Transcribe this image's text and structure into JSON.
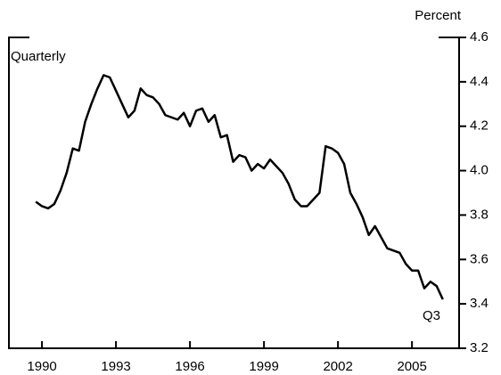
{
  "chart_data": {
    "type": "line",
    "y_axis_label": "Percent",
    "annotations": [
      "Quarterly",
      "Q3"
    ],
    "x": [
      1989.75,
      1990,
      1990.25,
      1990.5,
      1990.75,
      1991,
      1991.25,
      1991.5,
      1991.75,
      1992,
      1992.25,
      1992.5,
      1992.75,
      1993,
      1993.25,
      1993.5,
      1993.75,
      1994,
      1994.25,
      1994.5,
      1994.75,
      1995,
      1995.25,
      1995.5,
      1995.75,
      1996,
      1996.25,
      1996.5,
      1996.75,
      1997,
      1997.25,
      1997.5,
      1997.75,
      1998,
      1998.25,
      1998.5,
      1998.75,
      1999,
      1999.25,
      1999.5,
      1999.75,
      2000,
      2000.25,
      2000.5,
      2000.75,
      2001,
      2001.25,
      2001.5,
      2001.75,
      2002,
      2002.25,
      2002.5,
      2002.75,
      2003,
      2003.25,
      2003.5,
      2003.75,
      2004,
      2004.25,
      2004.5,
      2004.75,
      2005,
      2005.25,
      2005.5,
      2005.75,
      2006,
      2006.25
    ],
    "series": [
      {
        "color": "#000000",
        "values": [
          3.86,
          3.84,
          3.83,
          3.85,
          3.91,
          3.99,
          4.1,
          4.09,
          4.22,
          4.3,
          4.37,
          4.43,
          4.42,
          4.36,
          4.3,
          4.24,
          4.27,
          4.37,
          4.34,
          4.33,
          4.3,
          4.25,
          4.24,
          4.23,
          4.26,
          4.2,
          4.27,
          4.28,
          4.22,
          4.25,
          4.15,
          4.16,
          4.04,
          4.07,
          4.06,
          4.0,
          4.03,
          4.01,
          4.05,
          4.02,
          3.99,
          3.94,
          3.87,
          3.84,
          3.84,
          3.87,
          3.9,
          4.11,
          4.1,
          4.08,
          4.03,
          3.9,
          3.85,
          3.79,
          3.71,
          3.75,
          3.7,
          3.65,
          3.64,
          3.63,
          3.58,
          3.55,
          3.55,
          3.47,
          3.5,
          3.48,
          3.42
        ]
      }
    ],
    "xlim": [
      1988.66,
      2006.91
    ],
    "xticks": [
      1990,
      1993,
      1996,
      1999,
      2002,
      2005
    ],
    "ylim": [
      3.2,
      4.6
    ],
    "yticks": [
      3.2,
      3.4,
      3.6,
      3.8,
      {
        "value": 4,
        "label": "4.0"
      },
      4.2,
      4.4,
      4.6
    ],
    "y_axis_side": "right"
  }
}
